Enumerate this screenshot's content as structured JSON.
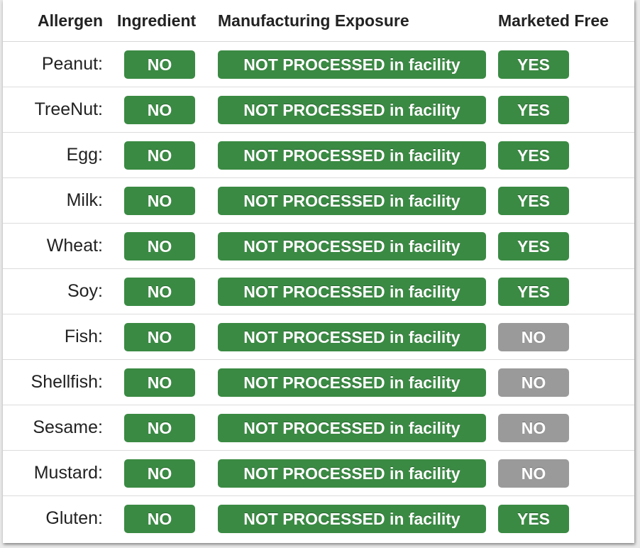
{
  "colors": {
    "success": "#3a8a43",
    "neutral": "#9a9a9a"
  },
  "headers": {
    "allergen": "Allergen",
    "ingredient": "Ingredient",
    "manufacturing": "Manufacturing Exposure",
    "marketed_free": "Marketed Free"
  },
  "rows": [
    {
      "allergen": "Peanut:",
      "ingredient": "NO",
      "manufacturing": "NOT PROCESSED in facility",
      "marketed_free": "YES"
    },
    {
      "allergen": "TreeNut:",
      "ingredient": "NO",
      "manufacturing": "NOT PROCESSED in facility",
      "marketed_free": "YES"
    },
    {
      "allergen": "Egg:",
      "ingredient": "NO",
      "manufacturing": "NOT PROCESSED in facility",
      "marketed_free": "YES"
    },
    {
      "allergen": "Milk:",
      "ingredient": "NO",
      "manufacturing": "NOT PROCESSED in facility",
      "marketed_free": "YES"
    },
    {
      "allergen": "Wheat:",
      "ingredient": "NO",
      "manufacturing": "NOT PROCESSED in facility",
      "marketed_free": "YES"
    },
    {
      "allergen": "Soy:",
      "ingredient": "NO",
      "manufacturing": "NOT PROCESSED in facility",
      "marketed_free": "YES"
    },
    {
      "allergen": "Fish:",
      "ingredient": "NO",
      "manufacturing": "NOT PROCESSED in facility",
      "marketed_free": "NO"
    },
    {
      "allergen": "Shellfish:",
      "ingredient": "NO",
      "manufacturing": "NOT PROCESSED in facility",
      "marketed_free": "NO"
    },
    {
      "allergen": "Sesame:",
      "ingredient": "NO",
      "manufacturing": "NOT PROCESSED in facility",
      "marketed_free": "NO"
    },
    {
      "allergen": "Mustard:",
      "ingredient": "NO",
      "manufacturing": "NOT PROCESSED in facility",
      "marketed_free": "NO"
    },
    {
      "allergen": "Gluten:",
      "ingredient": "NO",
      "manufacturing": "NOT PROCESSED in facility",
      "marketed_free": "YES"
    }
  ]
}
